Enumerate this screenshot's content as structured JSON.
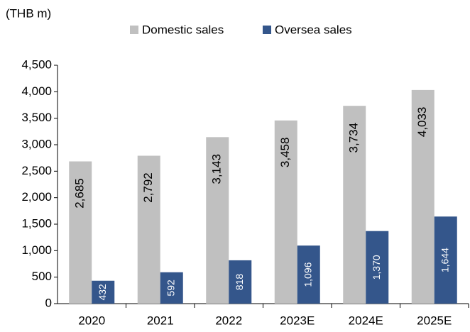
{
  "chart_data": {
    "type": "bar",
    "unit_label": "(THB m)",
    "categories": [
      "2020",
      "2021",
      "2022",
      "2023E",
      "2024E",
      "2025E"
    ],
    "series": [
      {
        "name": "Domestic sales",
        "color": "#c0c0c0",
        "values": [
          2685,
          2792,
          3143,
          3458,
          3734,
          4033
        ],
        "value_labels": [
          "2,685",
          "2,792",
          "3,143",
          "3,458",
          "3,734",
          "4,033"
        ]
      },
      {
        "name": "Oversea sales",
        "color": "#34568b",
        "values": [
          432,
          592,
          818,
          1096,
          1370,
          1644
        ],
        "value_labels": [
          "432",
          "592",
          "818",
          "1,096",
          "1,370",
          "1,644"
        ]
      }
    ],
    "ylim": [
      0,
      4500
    ],
    "yticks": [
      0,
      500,
      {
        "value": 1000,
        "label": "1,000"
      },
      {
        "value": 1500,
        "label": "1,500"
      },
      {
        "value": 2000,
        "label": "2,000"
      },
      {
        "value": 2500,
        "label": "2,500"
      },
      {
        "value": 3000,
        "label": "3,000"
      },
      {
        "value": 3500,
        "label": "3,500"
      },
      {
        "value": 4000,
        "label": "4,000"
      },
      {
        "value": 4500,
        "label": "4,500"
      }
    ],
    "legend": "top"
  }
}
